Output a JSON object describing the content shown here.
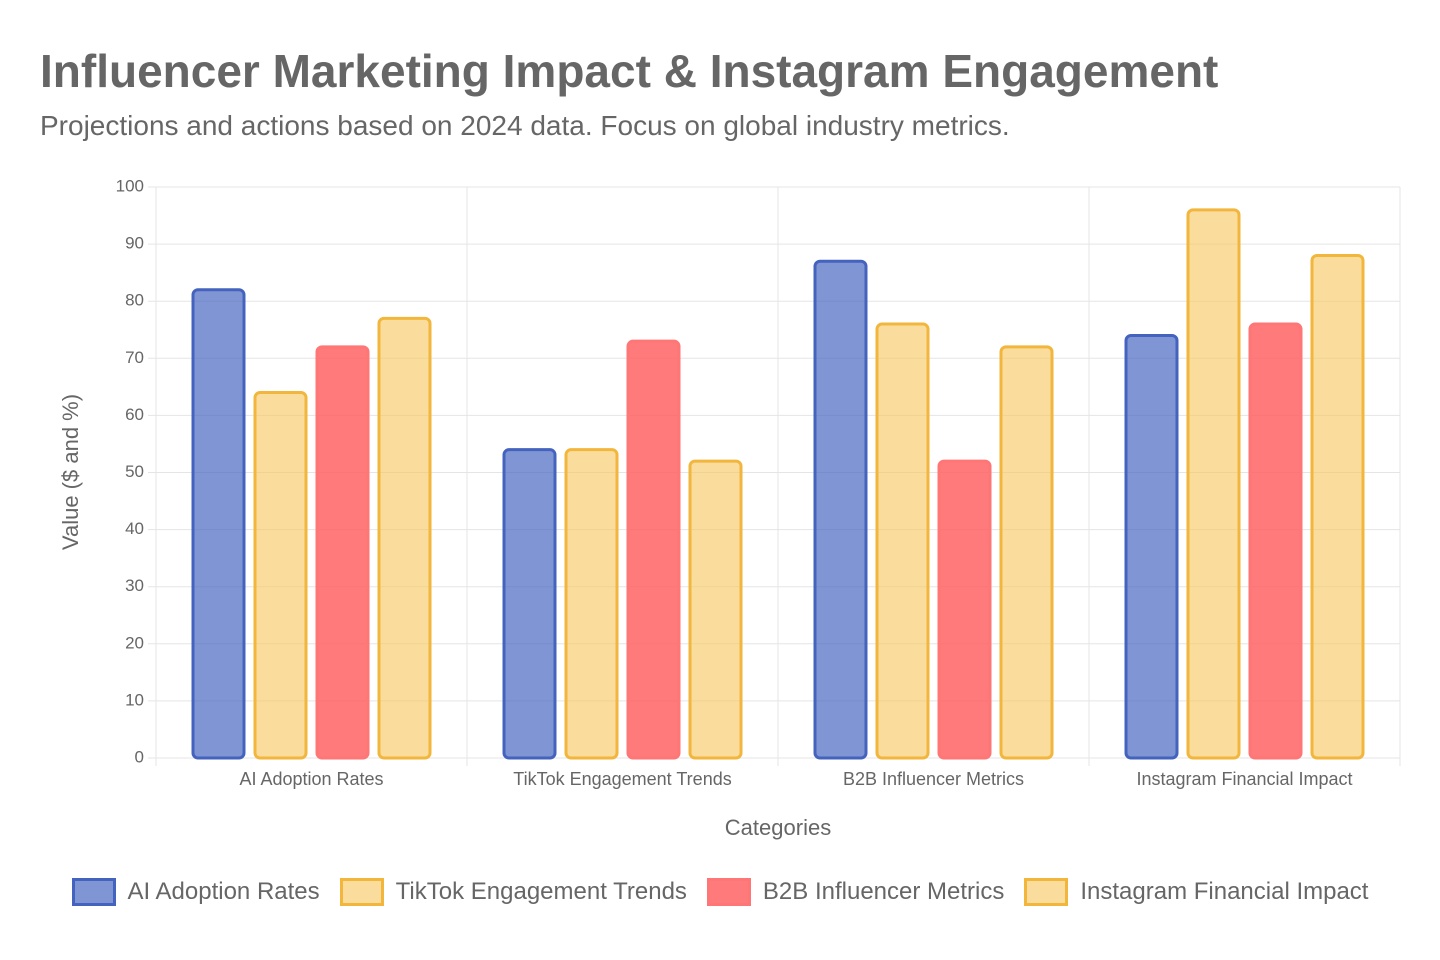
{
  "chart_data": {
    "type": "bar",
    "title": "Influencer Marketing Impact & Instagram Engagement",
    "subtitle": "Projections and actions based on 2024 data. Focus on global industry metrics.",
    "x_label": "Categories",
    "y_label": "Value ($ and %)",
    "categories": [
      "AI Adoption Rates",
      "TikTok Engagement Trends",
      "B2B Influencer Metrics",
      "Instagram Financial Impact"
    ],
    "series": [
      {
        "name": "AI Adoption Rates",
        "color": "#4463be",
        "fill": "rgba(68,99,190,0.68)",
        "values": [
          82,
          54,
          87,
          74
        ]
      },
      {
        "name": "TikTok Engagement Trends",
        "color": "#f2b63c",
        "fill": "rgba(246,198,90,0.6)",
        "values": [
          64,
          54,
          76,
          96
        ]
      },
      {
        "name": "B2B Influencer Metrics",
        "color": "#ff7676",
        "fill": "rgba(255,99,99,0.85)",
        "values": [
          72,
          73,
          52,
          76
        ]
      },
      {
        "name": "Instagram Financial Impact",
        "color": "#f2b63c",
        "fill": "rgba(246,198,90,0.6)",
        "values": [
          77,
          52,
          72,
          88
        ]
      }
    ],
    "ylim": [
      0,
      100
    ],
    "yticks": [
      0,
      10,
      20,
      30,
      40,
      50,
      60,
      70,
      80,
      90,
      100
    ],
    "grid": true,
    "legend": "bottom"
  }
}
